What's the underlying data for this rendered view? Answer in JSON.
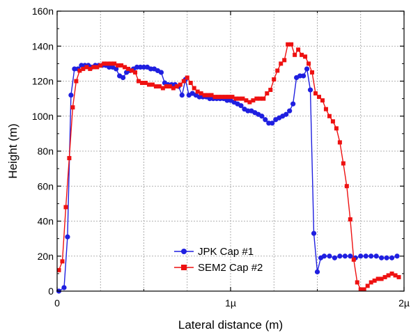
{
  "chart_data": {
    "type": "line",
    "xlabel": "Lateral distance (m)",
    "ylabel": "Height (m)",
    "xlim": [
      0,
      2.0
    ],
    "ylim": [
      0,
      160
    ],
    "x_ticks": [
      0,
      1,
      2
    ],
    "x_tick_labels": [
      "0",
      "1µ",
      "2µ"
    ],
    "y_ticks": [
      0,
      20,
      40,
      60,
      80,
      100,
      120,
      140,
      160
    ],
    "y_tick_labels": [
      "0",
      "20n",
      "40n",
      "60n",
      "80n",
      "100n",
      "120n",
      "140n",
      "160n"
    ],
    "grid": true,
    "legend_position": "bottom-right",
    "series": [
      {
        "name": "JPK Cap #1",
        "color": "#1f1fe0",
        "marker": "circle",
        "x": [
          0.01,
          0.04,
          0.06,
          0.08,
          0.1,
          0.12,
          0.14,
          0.16,
          0.18,
          0.2,
          0.22,
          0.24,
          0.26,
          0.28,
          0.3,
          0.32,
          0.34,
          0.36,
          0.38,
          0.4,
          0.42,
          0.44,
          0.46,
          0.48,
          0.5,
          0.52,
          0.54,
          0.56,
          0.58,
          0.6,
          0.62,
          0.64,
          0.66,
          0.68,
          0.7,
          0.72,
          0.74,
          0.76,
          0.78,
          0.8,
          0.82,
          0.84,
          0.86,
          0.88,
          0.9,
          0.92,
          0.94,
          0.96,
          0.98,
          1.0,
          1.02,
          1.04,
          1.06,
          1.08,
          1.1,
          1.12,
          1.14,
          1.16,
          1.18,
          1.2,
          1.22,
          1.24,
          1.26,
          1.28,
          1.3,
          1.32,
          1.34,
          1.36,
          1.38,
          1.4,
          1.42,
          1.44,
          1.46,
          1.48,
          1.5,
          1.52,
          1.54,
          1.57,
          1.6,
          1.63,
          1.66,
          1.69,
          1.72,
          1.75,
          1.78,
          1.81,
          1.84,
          1.87,
          1.9,
          1.93,
          1.96
        ],
        "y": [
          0,
          2,
          31,
          112,
          127,
          127,
          129,
          129,
          129,
          128,
          129,
          129,
          129,
          129,
          128,
          128,
          127,
          123,
          122,
          125,
          126,
          127,
          128,
          128,
          128,
          128,
          127,
          127,
          126,
          125,
          119,
          118,
          118,
          118,
          117,
          112,
          121,
          112,
          113,
          112,
          111,
          111,
          111,
          110,
          110,
          110,
          110,
          110,
          109,
          109,
          108,
          107,
          106,
          104,
          103,
          103,
          102,
          101,
          100,
          98,
          96,
          96,
          98,
          99,
          100,
          101,
          103,
          107,
          122,
          123,
          123,
          127,
          115,
          33,
          11,
          19,
          20,
          20,
          19,
          20,
          20,
          20,
          19,
          20,
          20,
          20,
          20,
          19,
          19,
          19,
          20
        ]
      },
      {
        "name": "SEM2 Cap #2",
        "color": "#ee1111",
        "marker": "square",
        "x": [
          0.01,
          0.03,
          0.05,
          0.07,
          0.09,
          0.11,
          0.13,
          0.15,
          0.17,
          0.19,
          0.21,
          0.23,
          0.25,
          0.27,
          0.29,
          0.31,
          0.33,
          0.35,
          0.37,
          0.39,
          0.41,
          0.43,
          0.45,
          0.47,
          0.49,
          0.51,
          0.53,
          0.55,
          0.57,
          0.59,
          0.61,
          0.63,
          0.65,
          0.67,
          0.69,
          0.71,
          0.73,
          0.75,
          0.77,
          0.79,
          0.81,
          0.83,
          0.85,
          0.87,
          0.89,
          0.91,
          0.93,
          0.95,
          0.97,
          0.99,
          1.01,
          1.03,
          1.05,
          1.07,
          1.09,
          1.11,
          1.13,
          1.15,
          1.17,
          1.19,
          1.21,
          1.23,
          1.25,
          1.27,
          1.29,
          1.31,
          1.33,
          1.35,
          1.37,
          1.39,
          1.41,
          1.43,
          1.45,
          1.47,
          1.49,
          1.51,
          1.53,
          1.55,
          1.57,
          1.59,
          1.61,
          1.63,
          1.65,
          1.67,
          1.69,
          1.71,
          1.73,
          1.75,
          1.77,
          1.79,
          1.81,
          1.83,
          1.85,
          1.87,
          1.89,
          1.91,
          1.93,
          1.95,
          1.97
        ],
        "y": [
          12,
          17,
          48,
          76,
          105,
          120,
          126,
          127,
          128,
          127,
          128,
          128,
          129,
          130,
          130,
          130,
          130,
          129,
          129,
          128,
          127,
          126,
          125,
          120,
          119,
          119,
          118,
          118,
          117,
          117,
          116,
          117,
          117,
          116,
          117,
          118,
          120,
          122,
          119,
          116,
          114,
          113,
          112,
          112,
          112,
          111,
          111,
          111,
          111,
          111,
          111,
          110,
          110,
          110,
          109,
          108,
          109,
          110,
          110,
          110,
          113,
          115,
          121,
          126,
          130,
          132,
          141,
          141,
          135,
          138,
          135,
          134,
          130,
          125,
          113,
          111,
          109,
          104,
          100,
          97,
          93,
          85,
          73,
          60,
          41,
          18,
          5,
          1,
          1,
          3,
          5,
          6,
          7,
          7,
          8,
          9,
          10,
          9,
          8
        ]
      }
    ]
  }
}
